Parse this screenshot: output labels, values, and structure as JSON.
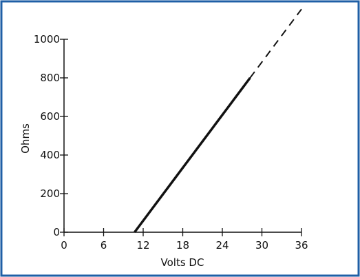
{
  "chart_data": {
    "type": "line",
    "xlabel": "Volts DC",
    "ylabel": "Ohms",
    "xlim": [
      0,
      36
    ],
    "ylim": [
      0,
      1000
    ],
    "x_ticks": [
      0,
      6,
      12,
      18,
      24,
      30,
      36
    ],
    "y_ticks": [
      0,
      200,
      400,
      600,
      800,
      1000
    ],
    "grid": false,
    "legend": "none",
    "series": [
      {
        "style": "solid",
        "x": [
          10.7,
          28.2
        ],
        "y": [
          0,
          800
        ]
      },
      {
        "style": "dashed",
        "x": [
          28.2,
          36
        ],
        "y": [
          800,
          1156
        ]
      }
    ],
    "colors": {
      "frame": "#1f5fa6",
      "line": "#111111"
    }
  }
}
